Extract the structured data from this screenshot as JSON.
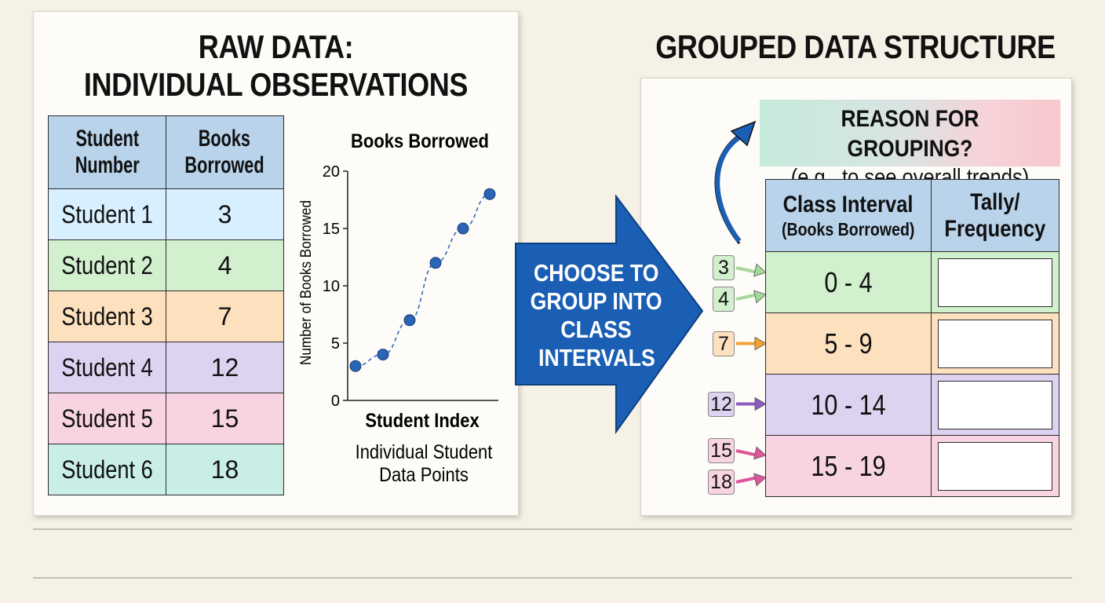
{
  "left": {
    "title_line1": "RAW DATA:",
    "title_line2": "INDIVIDUAL OBSERVATIONS",
    "table": {
      "headers": [
        "Student Number",
        "Books Borrowed"
      ],
      "header_lines": [
        [
          "Student",
          "Number"
        ],
        [
          "Books",
          "Borrowed"
        ]
      ],
      "rows": [
        {
          "student": "Student 1",
          "books": "3",
          "color": "#d8efff"
        },
        {
          "student": "Student 2",
          "books": "4",
          "color": "#d2efce"
        },
        {
          "student": "Student 3",
          "books": "7",
          "color": "#fde1bf"
        },
        {
          "student": "Student 4",
          "books": "12",
          "color": "#ddd2f0"
        },
        {
          "student": "Student 5",
          "books": "15",
          "color": "#f8d4e2"
        },
        {
          "student": "Student 6",
          "books": "18",
          "color": "#c9eee6"
        }
      ]
    }
  },
  "chart_data": {
    "type": "line",
    "title": "Books Borrowed",
    "xlabel": "Student Index",
    "ylabel": "Number of Books Borrowed",
    "caption_line1": "Individual Student",
    "caption_line2": "Data Points",
    "x": [
      1,
      2,
      3,
      4,
      5,
      6
    ],
    "values": [
      3,
      4,
      7,
      12,
      15,
      18
    ],
    "ylim": [
      0,
      20
    ],
    "yticks": [
      0,
      5,
      10,
      15,
      20
    ],
    "grid": false,
    "line_style": "dashed",
    "color": "#2a64b5"
  },
  "arrow": {
    "lines": [
      "CHOOSE TO",
      "GROUP INTO",
      "CLASS",
      "INTERVALS"
    ],
    "color": "#1a5fb4"
  },
  "right": {
    "title": "GROUPED DATA STRUCTURE",
    "reason_line1": "REASON FOR GROUPING?",
    "reason_line2": "(e.g., to see overall trends)",
    "table": {
      "header1_main": "Class Interval",
      "header1_sub": "(Books Borrowed)",
      "header2_lines": [
        "Tally/",
        "Frequency"
      ],
      "rows": [
        {
          "interval": "0 - 4",
          "color": "#d2efce",
          "values": [
            "3",
            "4"
          ],
          "arrow_color": "#a6d89c"
        },
        {
          "interval": "5 - 9",
          "color": "#fde1bf",
          "values": [
            "7"
          ],
          "arrow_color": "#f4a233"
        },
        {
          "interval": "10 - 14",
          "color": "#ddd2f0",
          "values": [
            "12"
          ],
          "arrow_color": "#8b5cc4"
        },
        {
          "interval": "15 - 19",
          "color": "#f8d4e2",
          "values": [
            "15",
            "18"
          ],
          "arrow_color": "#e0559a"
        }
      ]
    }
  }
}
